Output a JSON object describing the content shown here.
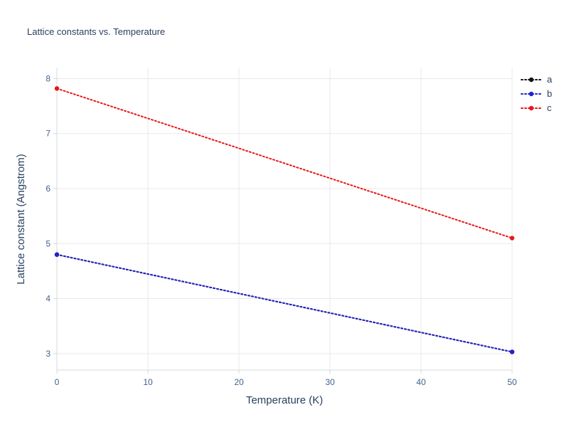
{
  "chart_data": {
    "type": "line",
    "title": "Lattice constants vs. Temperature",
    "xlabel": "Temperature (K)",
    "ylabel": "Lattice constant (Angstrom)",
    "x": [
      0,
      50
    ],
    "xlim": [
      0,
      50
    ],
    "ylim": [
      2.7,
      8.2
    ],
    "xticks": [
      0,
      10,
      20,
      30,
      40,
      50
    ],
    "yticks": [
      3,
      4,
      5,
      6,
      7,
      8
    ],
    "grid": true,
    "line_style": "dotted",
    "marker": "circle",
    "legend_position": "top-right",
    "series": [
      {
        "name": "a",
        "color": "#111111",
        "values": [
          4.8,
          3.03
        ]
      },
      {
        "name": "b",
        "color": "#2323c8",
        "values": [
          4.8,
          3.03
        ]
      },
      {
        "name": "c",
        "color": "#e81717",
        "values": [
          7.82,
          5.1
        ]
      }
    ],
    "colors": {
      "title": "#2a3f5f",
      "tick_labels": "#42618e",
      "grid": "#e9e9ee",
      "axis": "#d6d9de",
      "background": "#ffffff"
    }
  }
}
